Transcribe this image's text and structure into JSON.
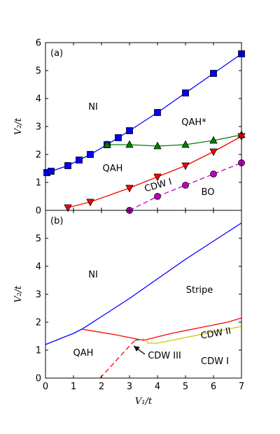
{
  "chart_data": [
    {
      "type": "line",
      "panel_label": "(a)",
      "xlim": [
        0,
        7
      ],
      "ylim": [
        0,
        6
      ],
      "yticks": [
        0,
        1,
        2,
        3,
        4,
        5,
        6
      ],
      "ylabel": "V₂/t",
      "grid": false,
      "series": [
        {
          "color": "#0000ff",
          "marker": "square",
          "dash": "solid",
          "x": [
            0.05,
            0.2,
            0.8,
            1.2,
            1.6,
            2.2,
            2.6,
            3.0,
            4.0,
            5.0,
            6.0,
            7.0
          ],
          "y": [
            1.35,
            1.4,
            1.6,
            1.8,
            2.0,
            2.35,
            2.6,
            2.85,
            3.5,
            4.2,
            4.9,
            5.6
          ]
        },
        {
          "color": "#008000",
          "marker": "triangle-up",
          "dash": "solid",
          "x": [
            2.2,
            3.0,
            4.0,
            5.0,
            6.0,
            7.0
          ],
          "y": [
            2.35,
            2.35,
            2.3,
            2.35,
            2.5,
            2.7
          ]
        },
        {
          "color": "#ff0000",
          "marker": "triangle-down",
          "dash": "solid",
          "x": [
            0.8,
            1.6,
            3.0,
            4.0,
            5.0,
            6.0,
            7.0
          ],
          "y": [
            0.1,
            0.3,
            0.8,
            1.2,
            1.6,
            2.1,
            2.65
          ]
        },
        {
          "color": "#bf00bf",
          "marker": "circle",
          "dash": "dashed",
          "x": [
            3.0,
            4.0,
            5.0,
            6.0,
            7.0
          ],
          "y": [
            0.0,
            0.5,
            0.9,
            1.3,
            1.7
          ]
        }
      ],
      "annotations": [
        {
          "text": "NI",
          "x": 1.7,
          "y": 3.6
        },
        {
          "text": "QAH*",
          "x": 5.3,
          "y": 3.05
        },
        {
          "text": "QAH",
          "x": 2.4,
          "y": 1.4
        },
        {
          "text": "CDW I",
          "x": 4.05,
          "y": 0.8,
          "rotate": -16
        },
        {
          "text": "BO",
          "x": 5.8,
          "y": 0.55
        }
      ]
    },
    {
      "type": "line",
      "panel_label": "(b)",
      "xlim": [
        0,
        7
      ],
      "ylim": [
        0,
        6
      ],
      "xticks": [
        0,
        1,
        2,
        3,
        4,
        5,
        6,
        7
      ],
      "yticks": [
        0,
        1,
        2,
        3,
        4,
        5
      ],
      "xlabel": "V₁/t",
      "ylabel": "V₂/t",
      "grid": false,
      "series": [
        {
          "color": "#0000ff",
          "dash": "solid",
          "x": [
            0,
            0.5,
            1.0,
            1.3,
            2.0,
            3.0,
            4.0,
            5.0,
            6.0,
            7.0
          ],
          "y": [
            1.2,
            1.4,
            1.6,
            1.75,
            2.2,
            2.85,
            3.55,
            4.25,
            4.9,
            5.55
          ]
        },
        {
          "color": "#ff0000",
          "dash": "solid",
          "x": [
            1.3,
            2.5,
            3.5
          ],
          "y": [
            1.75,
            1.55,
            1.35
          ]
        },
        {
          "color": "#ff0000",
          "dash": "solid",
          "x": [
            3.5,
            4.5,
            5.5,
            6.5,
            7.0
          ],
          "y": [
            1.35,
            1.6,
            1.8,
            2.0,
            2.15
          ]
        },
        {
          "color": "#c8c800",
          "dash": "solid",
          "x": [
            3.6,
            3.65,
            4.0,
            5.0,
            6.0,
            7.0
          ],
          "y": [
            1.4,
            1.25,
            1.25,
            1.45,
            1.65,
            1.85
          ]
        },
        {
          "color": "#ff0000",
          "dash": "dashed",
          "x": [
            1.95,
            2.5,
            3.0,
            3.2
          ],
          "y": [
            0.0,
            0.6,
            1.15,
            1.35
          ]
        },
        {
          "color": "#008000",
          "dash": "dashed",
          "x": [
            3.2,
            3.5
          ],
          "y": [
            1.35,
            1.4
          ]
        }
      ],
      "annotations": [
        {
          "text": "NI",
          "x": 1.7,
          "y": 3.6
        },
        {
          "text": "Stripe",
          "x": 5.5,
          "y": 3.05
        },
        {
          "text": "QAH",
          "x": 1.35,
          "y": 0.8
        },
        {
          "text": "CDW II",
          "x": 6.1,
          "y": 1.5,
          "rotate": -10
        },
        {
          "text": "CDW III",
          "x": 4.25,
          "y": 0.7
        },
        {
          "text": "CDW I",
          "x": 6.05,
          "y": 0.5
        }
      ],
      "arrow": {
        "from": [
          3.55,
          0.85
        ],
        "to": [
          3.15,
          1.15
        ]
      }
    }
  ]
}
